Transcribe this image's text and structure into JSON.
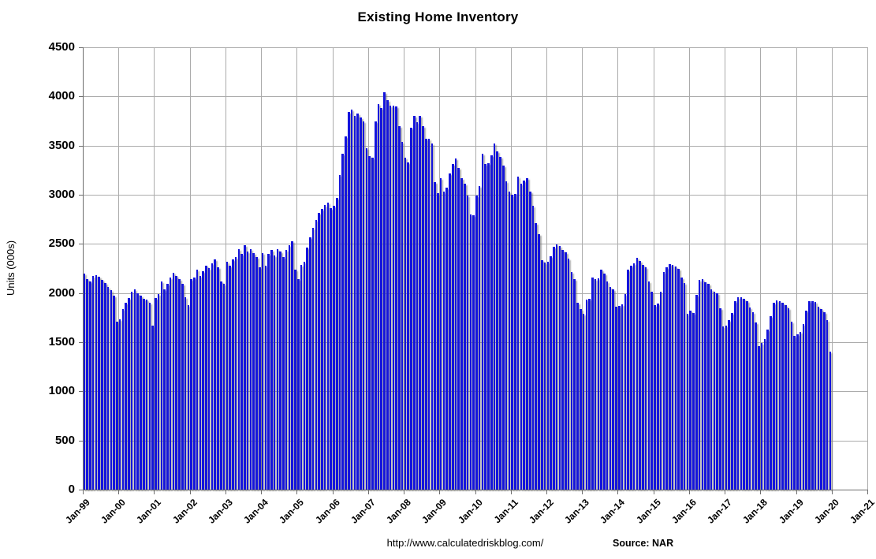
{
  "header": {
    "title": "Existing Home Inventory"
  },
  "footer": {
    "url": "http://www.calculatedriskblog.com/",
    "source_label": "Source: NAR"
  },
  "chart_data": {
    "type": "bar",
    "title": "Existing Home Inventory",
    "xlabel": "",
    "ylabel": "Units (000s)",
    "ylim": [
      0,
      4500
    ],
    "ytick_step": 500,
    "ytick_labels": [
      "0",
      "500",
      "1000",
      "1500",
      "2000",
      "2500",
      "3000",
      "3500",
      "4000",
      "4500"
    ],
    "x_tick_labels": [
      "Jan-99",
      "Jan-00",
      "Jan-01",
      "Jan-02",
      "Jan-03",
      "Jan-04",
      "Jan-05",
      "Jan-06",
      "Jan-07",
      "Jan-08",
      "Jan-09",
      "Jan-10",
      "Jan-11",
      "Jan-12",
      "Jan-13",
      "Jan-14",
      "Jan-15",
      "Jan-16",
      "Jan-17",
      "Jan-18",
      "Jan-19",
      "Jan-20",
      "Jan-21"
    ],
    "x_axis_total_months": 264,
    "start_month": "Jan-99",
    "end_month": "Dec-19",
    "grid": true,
    "legend_position": "none",
    "bar_color": "#1414dc",
    "grid_color": "#ababab",
    "axis_color": "#6e6e6e",
    "series": [
      {
        "name": "Existing Home Inventory (000s, monthly, Jan-99 to Dec-19)",
        "values": [
          2200,
          2140,
          2120,
          2175,
          2180,
          2165,
          2135,
          2105,
          2065,
          2030,
          1970,
          1705,
          1730,
          1835,
          1905,
          1950,
          2015,
          2040,
          2000,
          1975,
          1945,
          1930,
          1905,
          1670,
          1950,
          1990,
          2115,
          2040,
          2095,
          2160,
          2205,
          2175,
          2140,
          2095,
          1955,
          1880,
          2145,
          2160,
          2240,
          2175,
          2225,
          2280,
          2255,
          2305,
          2345,
          2265,
          2120,
          2090,
          2320,
          2275,
          2345,
          2370,
          2450,
          2395,
          2490,
          2425,
          2450,
          2410,
          2370,
          2260,
          2410,
          2275,
          2395,
          2435,
          2385,
          2450,
          2425,
          2370,
          2435,
          2490,
          2530,
          2235,
          2140,
          2290,
          2315,
          2465,
          2570,
          2665,
          2745,
          2815,
          2855,
          2895,
          2920,
          2865,
          2890,
          2970,
          3200,
          3415,
          3590,
          3845,
          3870,
          3805,
          3830,
          3790,
          3750,
          3470,
          3390,
          3380,
          3750,
          3925,
          3885,
          4045,
          3965,
          3910,
          3910,
          3900,
          3695,
          3535,
          3380,
          3330,
          3680,
          3800,
          3735,
          3800,
          3700,
          3570,
          3570,
          3520,
          3125,
          3015,
          3165,
          3030,
          3070,
          3215,
          3310,
          3365,
          3270,
          3165,
          3110,
          2990,
          2800,
          2790,
          2990,
          3090,
          3415,
          3310,
          3320,
          3400,
          3520,
          3440,
          3385,
          3295,
          3140,
          3030,
          3000,
          3005,
          3185,
          3110,
          3145,
          3170,
          3035,
          2885,
          2715,
          2595,
          2335,
          2310,
          2320,
          2375,
          2470,
          2495,
          2480,
          2440,
          2415,
          2350,
          2210,
          2145,
          1905,
          1840,
          1785,
          1935,
          1945,
          2155,
          2145,
          2150,
          2235,
          2195,
          2115,
          2060,
          2035,
          1860,
          1870,
          1885,
          1990,
          2235,
          2275,
          2305,
          2355,
          2330,
          2290,
          2265,
          2115,
          2010,
          1875,
          1895,
          2010,
          2210,
          2265,
          2295,
          2285,
          2270,
          2250,
          2155,
          2100,
          1790,
          1820,
          1795,
          1985,
          2130,
          2145,
          2110,
          2090,
          2040,
          2010,
          1995,
          1845,
          1660,
          1670,
          1725,
          1795,
          1915,
          1955,
          1960,
          1940,
          1920,
          1850,
          1805,
          1700,
          1460,
          1495,
          1535,
          1630,
          1765,
          1900,
          1925,
          1915,
          1900,
          1875,
          1845,
          1710,
          1565,
          1580,
          1605,
          1685,
          1820,
          1915,
          1920,
          1910,
          1860,
          1835,
          1805,
          1725,
          1400
        ]
      }
    ]
  }
}
